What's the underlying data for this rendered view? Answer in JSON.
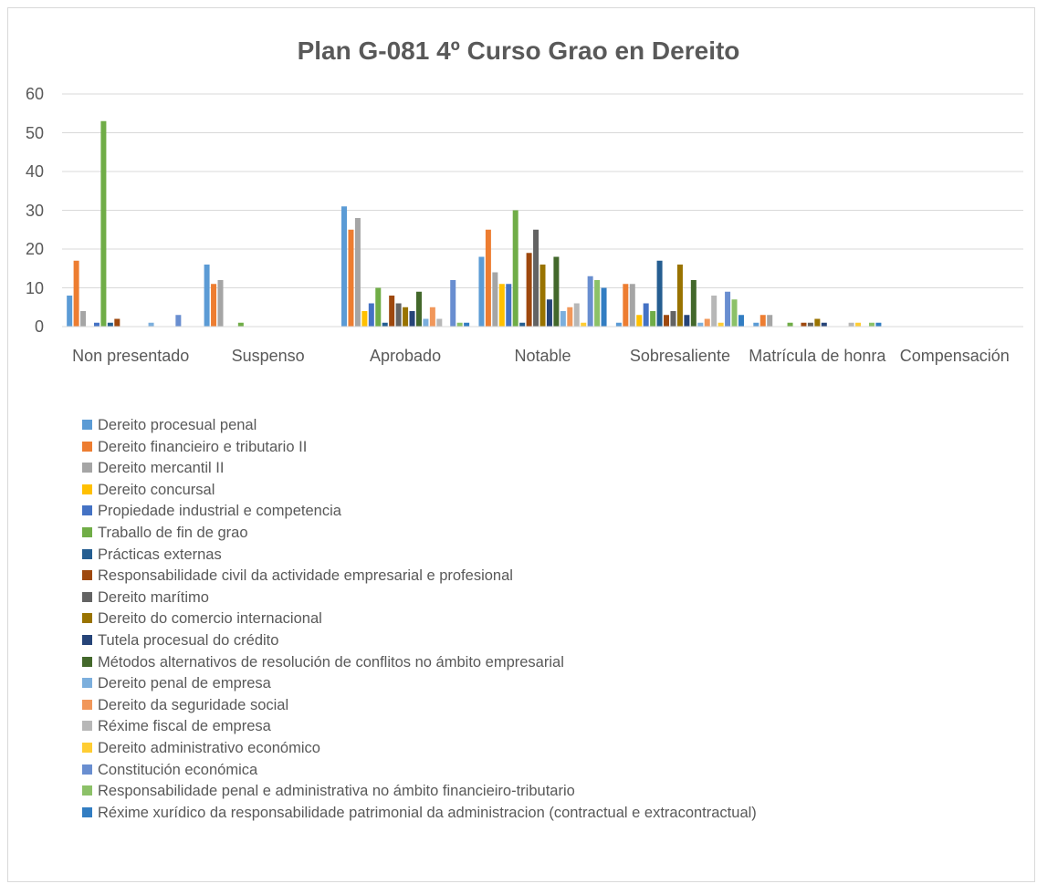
{
  "chart_data": {
    "type": "bar",
    "title": "Plan G-081 4º Curso Grao en Dereito",
    "categories": [
      "Non presentado",
      "Suspenso",
      "Aprobado",
      "Notable",
      "Sobresaliente",
      "Matrícula de honra",
      "Compensación"
    ],
    "ylim": [
      0,
      60
    ],
    "yticks": [
      0,
      10,
      20,
      30,
      40,
      50,
      60
    ],
    "grid": true,
    "legend": "bottom",
    "series": [
      {
        "name": "Dereito procesual penal",
        "color": "#5B9BD5",
        "values": [
          8,
          16,
          31,
          18,
          1,
          1,
          0
        ]
      },
      {
        "name": "Dereito financieiro e tributario II",
        "color": "#ED7D31",
        "values": [
          17,
          11,
          25,
          25,
          11,
          3,
          0
        ]
      },
      {
        "name": "Dereito mercantil II",
        "color": "#A5A5A5",
        "values": [
          4,
          12,
          28,
          14,
          11,
          3,
          0
        ]
      },
      {
        "name": "Dereito concursal",
        "color": "#FFC000",
        "values": [
          0,
          0,
          4,
          11,
          3,
          0,
          0
        ]
      },
      {
        "name": "Propiedade industrial e competencia",
        "color": "#4472C4",
        "values": [
          1,
          0,
          6,
          11,
          6,
          0,
          0
        ]
      },
      {
        "name": "Traballo de fin de grao",
        "color": "#70AD47",
        "values": [
          53,
          1,
          10,
          30,
          4,
          1,
          0
        ]
      },
      {
        "name": "Prácticas externas",
        "color": "#255E91",
        "values": [
          1,
          0,
          1,
          1,
          17,
          0,
          0
        ]
      },
      {
        "name": "Responsabilidade civil da actividade empresarial e profesional",
        "color": "#9E480E",
        "values": [
          2,
          0,
          8,
          19,
          3,
          1,
          0
        ]
      },
      {
        "name": "Dereito marítimo",
        "color": "#636363",
        "values": [
          0,
          0,
          6,
          25,
          4,
          1,
          0
        ]
      },
      {
        "name": "Dereito do comercio internacional",
        "color": "#997300",
        "values": [
          0,
          0,
          5,
          16,
          16,
          2,
          0
        ]
      },
      {
        "name": "Tutela procesual do crédito",
        "color": "#264478",
        "values": [
          0,
          0,
          4,
          7,
          3,
          1,
          0
        ]
      },
      {
        "name": "Métodos alternativos de resolución de conflitos no ámbito empresarial",
        "color": "#43682B",
        "values": [
          0,
          0,
          9,
          18,
          12,
          0,
          0
        ]
      },
      {
        "name": "Dereito penal de empresa",
        "color": "#7CAFDD",
        "values": [
          1,
          0,
          2,
          4,
          1,
          0,
          0
        ]
      },
      {
        "name": "Dereito da seguridade social",
        "color": "#F1975A",
        "values": [
          0,
          0,
          5,
          5,
          2,
          0,
          0
        ]
      },
      {
        "name": "Réxime fiscal de empresa",
        "color": "#B7B7B7",
        "values": [
          0,
          0,
          2,
          6,
          8,
          1,
          0
        ]
      },
      {
        "name": "Dereito administrativo económico",
        "color": "#FFCD33",
        "values": [
          0,
          0,
          0,
          1,
          1,
          1,
          0
        ]
      },
      {
        "name": "Constitución económica",
        "color": "#698ED0",
        "values": [
          3,
          0,
          12,
          13,
          9,
          0,
          0
        ]
      },
      {
        "name": "Responsabilidade penal e administrativa no ámbito financieiro-tributario",
        "color": "#8CC168",
        "values": [
          0,
          0,
          1,
          12,
          7,
          1,
          0
        ]
      },
      {
        "name": "Réxime xurídico da responsabilidade patrimonial da administracion (contractual e extracontractual)",
        "color": "#327DC2",
        "values": [
          0,
          0,
          1,
          10,
          3,
          1,
          0
        ]
      }
    ]
  }
}
